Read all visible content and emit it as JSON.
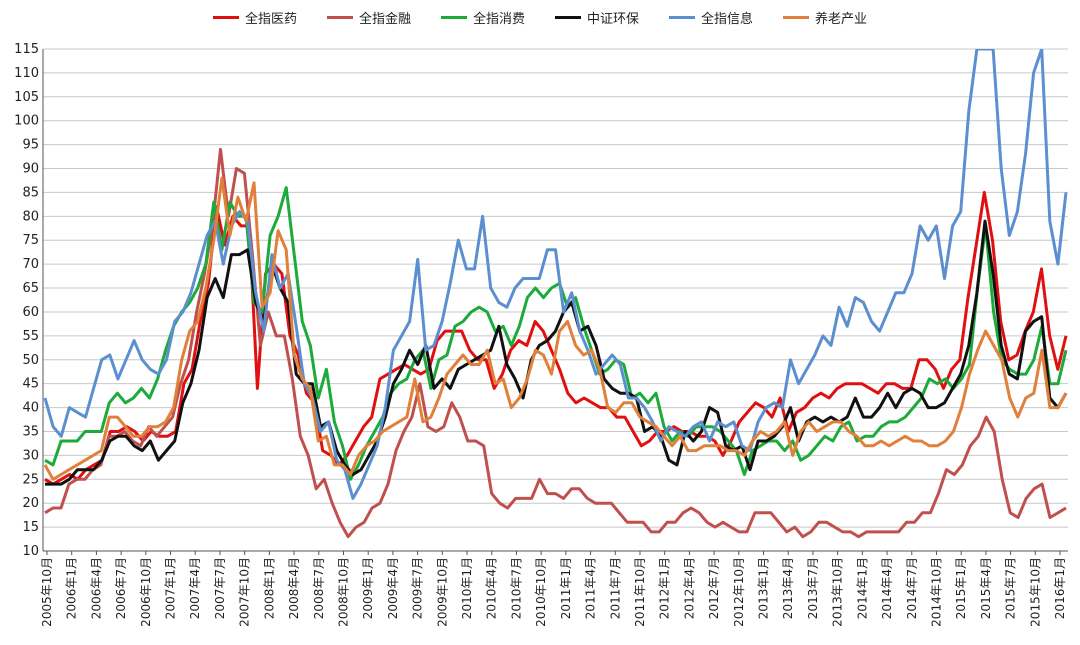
{
  "chart_data": {
    "type": "line",
    "legend_position": "top",
    "ylim": [
      10,
      115
    ],
    "yticks": [
      10,
      15,
      20,
      25,
      30,
      35,
      40,
      45,
      50,
      55,
      60,
      65,
      70,
      75,
      80,
      85,
      90,
      95,
      100,
      105,
      110,
      115
    ],
    "grid": true,
    "x_tick_labels": [
      "2005年10月",
      "2006年1月",
      "2006年4月",
      "2006年7月",
      "2006年10月",
      "2007年1月",
      "2007年4月",
      "2007年7月",
      "2007年10月",
      "2008年1月",
      "2008年4月",
      "2008年7月",
      "2008年10月",
      "2009年1月",
      "2009年4月",
      "2009年7月",
      "2009年10月",
      "2010年1月",
      "2010年4月",
      "2010年7月",
      "2010年10月",
      "2011年1月",
      "2011年4月",
      "2011年7月",
      "2011年10月",
      "2012年1月",
      "2012年4月",
      "2012年7月",
      "2012年10月",
      "2013年1月",
      "2013年4月",
      "2013年7月",
      "2013年10月",
      "2014年1月",
      "2014年4月",
      "2014年7月",
      "2014年10月",
      "2015年1月",
      "2015年4月",
      "2015年7月",
      "2015年10月",
      "2016年1月"
    ],
    "series": [
      {
        "name": "全指医药",
        "color": "#e01010",
        "values": [
          25,
          24,
          25,
          26,
          25,
          27,
          28,
          29,
          35,
          35,
          36,
          35,
          33,
          35,
          34,
          34,
          35,
          45,
          48,
          58,
          66,
          82,
          74,
          80,
          78,
          78,
          44,
          68,
          70,
          68,
          55,
          51,
          43,
          41,
          31,
          30,
          28,
          30,
          33,
          36,
          38,
          46,
          47,
          48,
          49,
          48,
          47,
          48,
          54,
          56,
          56,
          56,
          52,
          50,
          50,
          44,
          47,
          52,
          54,
          53,
          58,
          56,
          52,
          48,
          43,
          41,
          42,
          41,
          40,
          40,
          38,
          38,
          35,
          32,
          33,
          35,
          35,
          36,
          35,
          35,
          34,
          34,
          33,
          30,
          33,
          37,
          39,
          41,
          40,
          38,
          42,
          35,
          39,
          40,
          42,
          43,
          42,
          44,
          45,
          45,
          45,
          44,
          43,
          45,
          45,
          44,
          44,
          50,
          50,
          48,
          44,
          48,
          50,
          63,
          74,
          85,
          75,
          58,
          50,
          51,
          56,
          60,
          69,
          55,
          48,
          55
        ]
      },
      {
        "name": "全指金融",
        "color": "#c0504d",
        "values": [
          18,
          19,
          19,
          24,
          25,
          25,
          27,
          28,
          34,
          34,
          35,
          33,
          32,
          36,
          34,
          36,
          38,
          45,
          50,
          60,
          68,
          78,
          94,
          80,
          90,
          89,
          72,
          53,
          60,
          55,
          55,
          46,
          34,
          30,
          23,
          25,
          20,
          16,
          13,
          15,
          16,
          19,
          20,
          24,
          31,
          35,
          38,
          45,
          36,
          35,
          36,
          41,
          38,
          33,
          33,
          32,
          22,
          20,
          19,
          21,
          21,
          21,
          25,
          22,
          22,
          21,
          23,
          23,
          21,
          20,
          20,
          20,
          18,
          16,
          16,
          16,
          14,
          14,
          16,
          16,
          18,
          19,
          18,
          16,
          15,
          16,
          15,
          14,
          14,
          18,
          18,
          18,
          16,
          14,
          15,
          13,
          14,
          16,
          16,
          15,
          14,
          14,
          13,
          14,
          14,
          14,
          14,
          14,
          16,
          16,
          18,
          18,
          22,
          27,
          26,
          28,
          32,
          34,
          38,
          35,
          25,
          18,
          17,
          21,
          23,
          24,
          17,
          18,
          19
        ]
      },
      {
        "name": "全指消费",
        "color": "#1cab3a",
        "values": [
          29,
          28,
          33,
          33,
          33,
          35,
          35,
          35,
          41,
          43,
          41,
          42,
          44,
          42,
          46,
          52,
          57,
          60,
          62,
          65,
          70,
          83,
          73,
          83,
          80,
          80,
          62,
          60,
          76,
          80,
          86,
          72,
          58,
          53,
          42,
          48,
          37,
          32,
          25,
          28,
          32,
          35,
          38,
          43,
          45,
          46,
          50,
          52,
          44,
          50,
          51,
          57,
          58,
          60,
          61,
          60,
          56,
          57,
          53,
          57,
          63,
          65,
          63,
          65,
          66,
          61,
          63,
          57,
          52,
          47,
          48,
          50,
          49,
          42,
          43,
          41,
          43,
          36,
          33,
          35,
          34,
          36,
          36,
          36,
          35,
          33,
          31,
          26,
          31,
          32,
          33,
          33,
          31,
          33,
          29,
          30,
          32,
          34,
          33,
          36,
          37,
          33,
          34,
          34,
          36,
          37,
          37,
          38,
          40,
          42,
          46,
          45,
          46,
          44,
          46,
          49,
          65,
          78,
          60,
          50,
          48,
          47,
          47,
          50,
          57,
          45,
          45,
          52
        ]
      },
      {
        "name": "中证环保",
        "color": "#111111",
        "values": [
          24,
          24,
          24,
          25,
          27,
          27,
          27,
          29,
          33,
          34,
          34,
          32,
          31,
          33,
          29,
          31,
          33,
          41,
          45,
          52,
          63,
          67,
          63,
          72,
          72,
          73,
          62,
          58,
          70,
          65,
          62,
          47,
          45,
          45,
          36,
          37,
          31,
          28,
          26,
          27,
          30,
          33,
          38,
          45,
          48,
          52,
          49,
          53,
          44,
          46,
          44,
          48,
          49,
          50,
          51,
          52,
          57,
          49,
          46,
          42,
          50,
          53,
          54,
          56,
          60,
          62,
          56,
          57,
          53,
          46,
          44,
          43,
          43,
          42,
          35,
          36,
          34,
          29,
          28,
          35,
          33,
          35,
          40,
          39,
          32,
          31,
          32,
          27,
          33,
          33,
          34,
          36,
          40,
          33,
          37,
          38,
          37,
          38,
          37,
          38,
          42,
          38,
          38,
          40,
          43,
          40,
          43,
          44,
          43,
          40,
          40,
          41,
          44,
          47,
          53,
          64,
          79,
          68,
          53,
          47,
          46,
          56,
          58,
          59,
          42,
          40,
          43
        ]
      },
      {
        "name": "全指信息",
        "color": "#5b8fd0",
        "values": [
          42,
          36,
          34,
          40,
          39,
          38,
          44,
          50,
          51,
          46,
          50,
          54,
          50,
          48,
          47,
          50,
          58,
          60,
          64,
          70,
          76,
          79,
          70,
          78,
          81,
          79,
          64,
          56,
          72,
          65,
          68,
          57,
          45,
          42,
          35,
          37,
          29,
          27,
          21,
          24,
          28,
          32,
          40,
          52,
          55,
          58,
          71,
          52,
          53,
          58,
          66,
          75,
          69,
          69,
          80,
          65,
          62,
          61,
          65,
          67,
          67,
          67,
          73,
          73,
          60,
          64,
          56,
          52,
          47,
          49,
          51,
          49,
          42,
          42,
          40,
          37,
          33,
          36,
          35,
          34,
          36,
          37,
          33,
          37,
          36,
          37,
          32,
          31,
          37,
          40,
          41,
          40,
          50,
          45,
          48,
          51,
          55,
          53,
          61,
          57,
          63,
          62,
          58,
          56,
          60,
          64,
          64,
          68,
          78,
          75,
          78,
          67,
          78,
          81,
          102,
          115,
          115,
          115,
          90,
          76,
          81,
          93,
          110,
          115,
          79,
          70,
          85
        ]
      },
      {
        "name": "养老产业",
        "color": "#e0803a",
        "values": [
          28,
          25,
          26,
          27,
          28,
          29,
          30,
          31,
          38,
          38,
          36,
          34,
          34,
          36,
          36,
          37,
          40,
          50,
          56,
          58,
          65,
          75,
          88,
          76,
          84,
          79,
          87,
          61,
          64,
          77,
          73,
          51,
          46,
          44,
          33,
          34,
          28,
          28,
          26,
          30,
          32,
          33,
          35,
          36,
          37,
          38,
          46,
          37,
          38,
          42,
          47,
          49,
          51,
          49,
          49,
          52,
          45,
          46,
          40,
          42,
          46,
          52,
          51,
          47,
          56,
          58,
          53,
          51,
          52,
          48,
          40,
          39,
          41,
          41,
          38,
          37,
          36,
          34,
          32,
          34,
          31,
          31,
          32,
          32,
          32,
          31,
          31,
          30,
          33,
          35,
          34,
          35,
          37,
          30,
          35,
          37,
          35,
          36,
          37,
          37,
          35,
          34,
          32,
          32,
          33,
          32,
          33,
          34,
          33,
          33,
          32,
          32,
          33,
          35,
          40,
          47,
          52,
          56,
          53,
          50,
          42,
          38,
          42,
          43,
          52,
          40,
          40,
          43
        ]
      }
    ]
  }
}
